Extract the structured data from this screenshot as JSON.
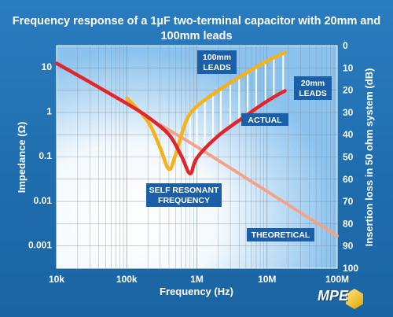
{
  "title": "Frequency response of a 1µF two-terminal capacitor with 20mm and 100mm leads",
  "logo_text": "MPE",
  "colors": {
    "lead100": "#f5b21a",
    "lead20": "#e0262b",
    "theoretical": "#f2a48a",
    "plot_bg": "#8cc3ee",
    "label_box": "#1a5fa8"
  },
  "chart_data": {
    "type": "line",
    "title": "Frequency response of a 1µF two-terminal capacitor with 20mm and 100mm leads",
    "xlabel": "Frequency (Hz)",
    "ylabel": "Impedance (Ω)",
    "y2label": "Insertion loss in 50 ohm system (dB)",
    "xscale": "log",
    "yscale": "log",
    "xlim": [
      10000,
      100000000
    ],
    "ylim": [
      0.0003,
      30
    ],
    "y2lim": [
      0,
      100
    ],
    "grid": true,
    "x_ticks": [
      "10k",
      "100k",
      "1M",
      "10M",
      "100M"
    ],
    "y_ticks": [
      "10",
      "1",
      "0.1",
      "0.01",
      "0.001"
    ],
    "y2_ticks": [
      "0",
      "10",
      "20",
      "30",
      "40",
      "50",
      "60",
      "70",
      "80",
      "90",
      "100"
    ],
    "series": [
      {
        "name": "100mm LEADS",
        "color": "#f5b21a",
        "x": [
          100000,
          200000,
          300000,
          400000,
          500000,
          700000,
          1000000,
          2000000,
          5000000,
          10000000,
          18000000
        ],
        "y": [
          2.0,
          0.6,
          0.15,
          0.05,
          0.11,
          0.6,
          1.3,
          2.9,
          7.2,
          13.5,
          21.0
        ]
      },
      {
        "name": "20mm LEADS",
        "color": "#e0262b",
        "x": [
          10000,
          30000,
          100000,
          200000,
          400000,
          600000,
          800000,
          1000000,
          2000000,
          5000000,
          10000000,
          18000000
        ],
        "y": [
          12.0,
          4.5,
          1.5,
          0.75,
          0.3,
          0.1,
          0.04,
          0.09,
          0.28,
          0.8,
          1.7,
          2.9
        ]
      },
      {
        "name": "THEORETICAL",
        "color": "#f2a48a",
        "x": [
          300000,
          1000000,
          10000000,
          100000000
        ],
        "y": [
          0.5,
          0.16,
          0.016,
          0.0016
        ]
      }
    ],
    "annotations": [
      "100mm\nLEADS",
      "20mm\nLEADS",
      "ACTUAL",
      "SELF RESONANT\nFREQUENCY",
      "THEORETICAL"
    ]
  },
  "labels": {
    "lead100_line1": "100mm",
    "lead100_line2": "LEADS",
    "lead20_line1": "20mm",
    "lead20_line2": "LEADS",
    "actual": "ACTUAL",
    "srf_line1": "SELF RESONANT",
    "srf_line2": "FREQUENCY",
    "theoretical": "THEORETICAL"
  }
}
